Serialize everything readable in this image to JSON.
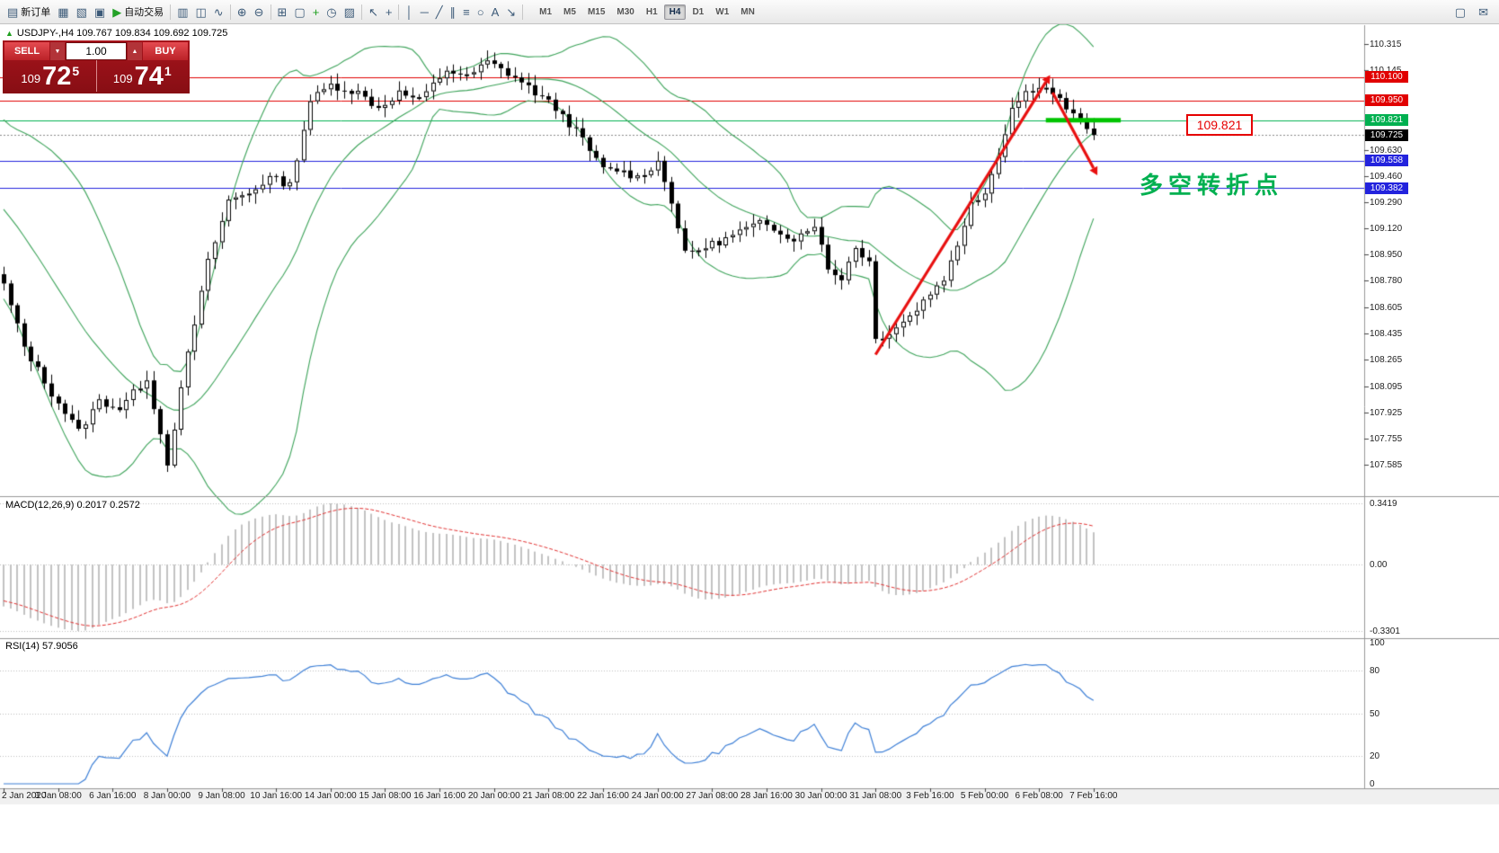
{
  "toolbar": {
    "items": [
      {
        "button": "new-order-button",
        "icon": "new-order-icon",
        "glyph": "▤",
        "label": "新订单"
      },
      {
        "button": "charts-button",
        "icon": "bar-chart-icon",
        "glyph": "▦"
      },
      {
        "button": "profiles-button",
        "icon": "profiles-icon",
        "glyph": "▧"
      },
      {
        "button": "data-window-button",
        "icon": "data-window-icon",
        "glyph": "▣"
      },
      {
        "button": "auto-trading-button",
        "icon": "play-icon",
        "glyph": "▶",
        "label": "自动交易",
        "glyph_color": "#23a127"
      },
      {
        "sep": true
      },
      {
        "button": "bar-chart-type-button",
        "icon": "bar-chart-type-icon",
        "glyph": "▥"
      },
      {
        "button": "candlestick-type-button",
        "icon": "candlestick-icon",
        "glyph": "◫"
      },
      {
        "button": "line-chart-type-button",
        "icon": "line-chart-icon",
        "glyph": "∿"
      },
      {
        "sep": true
      },
      {
        "button": "zoom-in-button",
        "icon": "zoom-in-icon",
        "glyph": "⊕"
      },
      {
        "button": "zoom-out-button",
        "icon": "zoom-out-icon",
        "glyph": "⊖"
      },
      {
        "sep": true
      },
      {
        "button": "tile-windows-button",
        "icon": "tile-windows-icon",
        "glyph": "⊞"
      },
      {
        "button": "cascade-windows-button",
        "icon": "cascade-windows-icon",
        "glyph": "▢"
      },
      {
        "button": "indicators-button",
        "icon": "indicators-plus-icon",
        "glyph": "+",
        "glyph_color": "#1c9e1c"
      },
      {
        "button": "periods-button",
        "icon": "clock-icon",
        "glyph": "◷"
      },
      {
        "button": "templates-button",
        "icon": "templates-icon",
        "glyph": "▨"
      },
      {
        "sep": true
      },
      {
        "button": "cursor-button",
        "icon": "cursor-icon",
        "glyph": "↖"
      },
      {
        "button": "crosshair-button",
        "icon": "crosshair-icon",
        "glyph": "+"
      },
      {
        "sep": true
      },
      {
        "button": "vertical-line-button",
        "icon": "vertical-line-icon",
        "glyph": "│"
      },
      {
        "button": "horizontal-line-button",
        "icon": "horizontal-line-icon",
        "glyph": "─"
      },
      {
        "button": "trendline-button",
        "icon": "trendline-icon",
        "glyph": "╱"
      },
      {
        "button": "channel-button",
        "icon": "channel-icon",
        "glyph": "∥"
      },
      {
        "button": "fibonacci-button",
        "icon": "fibonacci-icon",
        "glyph": "≡"
      },
      {
        "button": "shapes-button",
        "icon": "ellipse-icon",
        "glyph": "○"
      },
      {
        "button": "text-button",
        "icon": "text-icon",
        "glyph": "A"
      },
      {
        "button": "arrows-button",
        "icon": "arrow-tool-icon",
        "glyph": "↘"
      },
      {
        "sep": true
      }
    ],
    "timeframes": [
      "M1",
      "M5",
      "M15",
      "M30",
      "H1",
      "H4",
      "D1",
      "W1",
      "MN"
    ],
    "active_timeframe": "H4",
    "right_items": [
      {
        "button": "fullscreen-button",
        "icon": "fullscreen-icon",
        "glyph": "▢"
      },
      {
        "button": "community-button",
        "icon": "mail-icon",
        "glyph": "✉"
      }
    ]
  },
  "chart_header": {
    "title": "USDJPY-,H4  109.767 109.834 109.692 109.725"
  },
  "trade_panel": {
    "sell_label": "SELL",
    "buy_label": "BUY",
    "volume": "1.00",
    "spinner_down_glyph": "▼",
    "spinner_up_glyph": "▲",
    "bid": {
      "prefix": "109",
      "big": "72",
      "sup": "5"
    },
    "ask": {
      "prefix": "109",
      "big": "74",
      "sup": "1"
    }
  },
  "annotations": {
    "price_callout": "109.821",
    "callout_color": "#e60000",
    "turning_point_text": "多空转折点",
    "turning_point_color": "#00b050"
  },
  "indicators": {
    "macd_label": "MACD(12,26,9) 0.2017 0.2572",
    "rsi_label": "RSI(14) 57.9056"
  },
  "chart_data": {
    "type": "candlestick",
    "symbol": "USDJPY-",
    "timeframe": "H4",
    "current_ohlc": {
      "open": 109.767,
      "high": 109.834,
      "low": 109.692,
      "close": 109.725
    },
    "price_axis": {
      "top_price": 110.438,
      "bottom_price": 107.387,
      "ticks": [
        110.315,
        110.145,
        109.63,
        109.46,
        109.29,
        109.12,
        108.95,
        108.78,
        108.605,
        108.435,
        108.265,
        108.095,
        107.925,
        107.755,
        107.585
      ]
    },
    "line_labels": [
      {
        "price": 110.1,
        "text": "110.100",
        "bg": "#e10000"
      },
      {
        "price": 109.95,
        "text": "109.950",
        "bg": "#e10000"
      },
      {
        "price": 109.821,
        "text": "109.821",
        "bg": "#00b050"
      },
      {
        "price": 109.725,
        "text": "109.725",
        "bg": "#000000"
      },
      {
        "price": 109.558,
        "text": "109.558",
        "bg": "#2323dd"
      },
      {
        "price": 109.382,
        "text": "109.382",
        "bg": "#2323dd"
      }
    ],
    "h_lines": [
      {
        "price": 110.1,
        "color": "#e10000",
        "dash": []
      },
      {
        "price": 109.95,
        "color": "#e10000",
        "dash": []
      },
      {
        "price": 109.821,
        "color": "#00b050",
        "dash": []
      },
      {
        "price": 109.725,
        "color": "#8a8a8a",
        "dash": [
          2,
          2
        ]
      },
      {
        "price": 109.558,
        "color": "#2323dd",
        "dash": []
      },
      {
        "price": 109.382,
        "color": "#2323dd",
        "dash": []
      }
    ],
    "time_labels": [
      "2 Jan 2020",
      "3 Jan 08:00",
      "6 Jan 16:00",
      "8 Jan 00:00",
      "9 Jan 08:00",
      "10 Jan 16:00",
      "14 Jan 00:00",
      "15 Jan 08:00",
      "16 Jan 16:00",
      "20 Jan 00:00",
      "21 Jan 08:00",
      "22 Jan 16:00",
      "24 Jan 00:00",
      "27 Jan 08:00",
      "28 Jan 16:00",
      "30 Jan 00:00",
      "31 Jan 08:00",
      "3 Feb 16:00",
      "5 Feb 00:00",
      "6 Feb 08:00",
      "7 Feb 16:00"
    ],
    "label_every_n_candles": 8,
    "candle_count": 161,
    "price_path_anchors": [
      [
        0,
        108.75
      ],
      [
        3,
        108.35
      ],
      [
        7,
        108.05
      ],
      [
        11,
        107.8
      ],
      [
        14,
        108.0
      ],
      [
        17,
        107.95
      ],
      [
        21,
        108.15
      ],
      [
        24,
        107.6
      ],
      [
        27,
        108.3
      ],
      [
        30,
        108.9
      ],
      [
        33,
        109.3
      ],
      [
        36,
        109.35
      ],
      [
        39,
        109.45
      ],
      [
        42,
        109.4
      ],
      [
        45,
        109.95
      ],
      [
        48,
        110.05
      ],
      [
        52,
        110.0
      ],
      [
        55,
        109.9
      ],
      [
        58,
        110.0
      ],
      [
        61,
        109.95
      ],
      [
        65,
        110.15
      ],
      [
        68,
        110.1
      ],
      [
        71,
        110.2
      ],
      [
        75,
        110.1
      ],
      [
        78,
        110.0
      ],
      [
        81,
        109.9
      ],
      [
        84,
        109.75
      ],
      [
        88,
        109.5
      ],
      [
        90,
        109.5
      ],
      [
        93,
        109.45
      ],
      [
        96,
        109.55
      ],
      [
        98,
        109.3
      ],
      [
        100,
        108.95
      ],
      [
        103,
        109.0
      ],
      [
        106,
        109.05
      ],
      [
        108,
        109.1
      ],
      [
        111,
        109.15
      ],
      [
        114,
        109.1
      ],
      [
        116,
        109.05
      ],
      [
        119,
        109.15
      ],
      [
        121,
        108.85
      ],
      [
        123,
        108.8
      ],
      [
        125,
        109.0
      ],
      [
        127,
        108.9
      ],
      [
        128,
        108.4
      ],
      [
        130,
        108.45
      ],
      [
        133,
        108.55
      ],
      [
        135,
        108.65
      ],
      [
        138,
        108.8
      ],
      [
        140,
        109.0
      ],
      [
        142,
        109.3
      ],
      [
        144,
        109.35
      ],
      [
        146,
        109.6
      ],
      [
        148,
        109.9
      ],
      [
        150,
        110.0
      ],
      [
        152,
        110.05
      ],
      [
        154,
        110.0
      ],
      [
        155,
        109.95
      ],
      [
        157,
        109.85
      ],
      [
        159,
        109.78
      ],
      [
        160,
        109.725
      ]
    ],
    "bollinger": {
      "period": 20,
      "deviation": 2,
      "color": "#3da35a"
    },
    "trend_arrows": [
      {
        "from_idx": 128,
        "from_price": 108.3,
        "to_idx": 153,
        "to_price": 110.07,
        "color": "#e81010",
        "head": true
      },
      {
        "from_idx": 154,
        "from_price": 110.0,
        "to_idx": 160,
        "to_price": 109.51,
        "color": "#e81010",
        "head": true
      }
    ],
    "support_segment": {
      "price": 109.821,
      "from_idx": 153,
      "to_idx": 164,
      "color": "#00c400",
      "width": 5
    },
    "macd": {
      "params": "12,26,9",
      "value": "0.2017",
      "signal_value": "0.2572",
      "scale_max_label": "0.3419",
      "scale_zero_label": "0.00",
      "scale_min_label": "-0.3301",
      "bar_color": "#c2c2c2",
      "signal_color": "#e03030"
    },
    "rsi": {
      "period": 14,
      "value": "57.9056",
      "levels": [
        80,
        50,
        20
      ],
      "scale_labels": [
        100,
        80,
        50,
        20,
        0
      ],
      "line_color": "#3d7fd6"
    }
  }
}
